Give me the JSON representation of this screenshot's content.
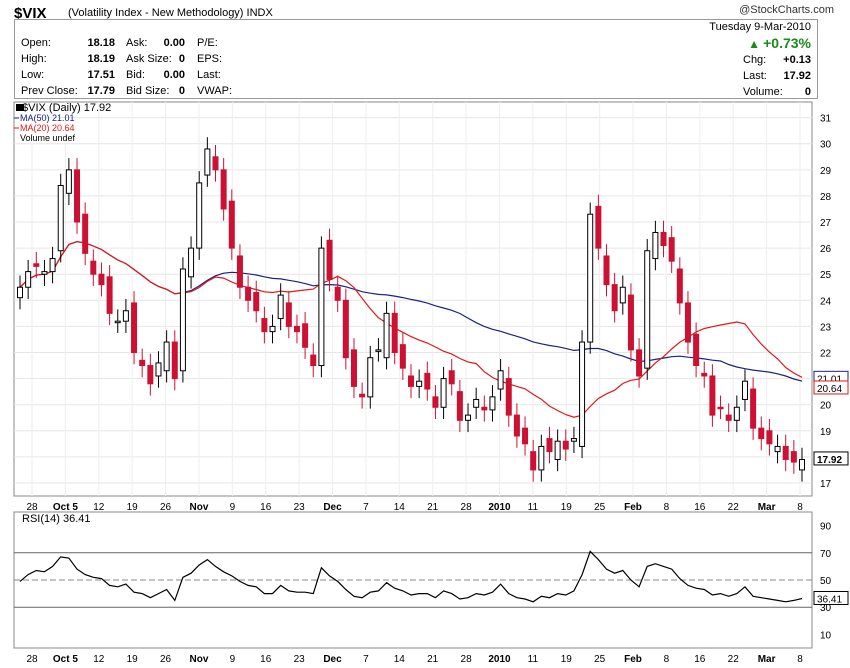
{
  "header": {
    "symbol": "$VIX",
    "name": "(Volatility Index - New Methodology)",
    "exchange": "INDX",
    "brand": "@StockCharts.com",
    "date": "Tuesday  9-Mar-2010",
    "change_pct": "+0.73%",
    "change_label": "Chg:",
    "change_value": "+0.13",
    "last_label": "Last:",
    "last_value": "17.92",
    "volume_label": "Volume:",
    "volume_value": "0",
    "fields": [
      {
        "label": "Open:",
        "value": "18.18"
      },
      {
        "label": "High:",
        "value": "18.19"
      },
      {
        "label": "Low:",
        "value": "17.51"
      },
      {
        "label": "Prev Close:",
        "value": "17.79"
      }
    ],
    "fields2": [
      {
        "label": "Ask:",
        "value": "0.00"
      },
      {
        "label": "Ask Size:",
        "value": "0"
      },
      {
        "label": "Bid:",
        "value": "0.00"
      },
      {
        "label": "Bid Size:",
        "value": "0"
      }
    ],
    "fields3": [
      "P/E:",
      "EPS:",
      "Last:",
      "VWAP:"
    ]
  },
  "colors": {
    "up": "#000000",
    "down": "#cc1133",
    "ma50": "#1a237e",
    "ma20": "#e01818",
    "rsi": "#000000"
  },
  "chart_data": [
    {
      "type": "candlestick",
      "title": "$VIX (Daily) 17.92",
      "legend": [
        "MA(50) 21.01",
        "MA(20) 20.64",
        "Volume undef"
      ],
      "ylim": [
        16.5,
        31.6
      ],
      "y_ticks": [
        17,
        18,
        19,
        20,
        21,
        22,
        23,
        24,
        25,
        26,
        27,
        28,
        29,
        30,
        31
      ],
      "x_ticks": [
        "28",
        "Oct 5",
        "12",
        "19",
        "26",
        "Nov",
        "9",
        "16",
        "23",
        "Dec",
        "7",
        "14",
        "21",
        "28",
        "2010",
        "11",
        "19",
        "25",
        "Feb",
        "8",
        "16",
        "22",
        "Mar",
        "8"
      ],
      "last_labels": {
        "ma50": "21.01",
        "ma20": "20.64",
        "close": "17.92"
      },
      "closes": [
        24.5,
        25.1,
        25.3,
        25.1,
        25.6,
        28.4,
        29.0,
        27.0,
        25.8,
        25.0,
        24.6,
        23.5,
        23.2,
        23.6,
        22.0,
        21.5,
        20.8,
        21.6,
        22.4,
        21.0,
        25.2,
        26.0,
        28.5,
        29.8,
        29.0,
        27.5,
        26.0,
        24.5,
        24.0,
        23.6,
        22.8,
        23.0,
        24.2,
        23.0,
        22.8,
        22.2,
        21.5,
        26.0,
        24.8,
        24.0,
        21.8,
        20.7,
        20.3,
        21.8,
        22.1,
        23.5,
        22.0,
        21.4,
        20.7,
        20.9,
        20.6,
        19.9,
        21.0,
        20.8,
        19.4,
        19.6,
        20.2,
        19.8,
        20.3,
        21.3,
        19.6,
        18.8,
        18.5,
        17.5,
        18.4,
        18.2,
        18.6,
        18.3,
        18.7,
        22.4,
        27.3,
        26.0,
        24.6,
        23.6,
        24.5,
        22.1,
        21.1,
        25.9,
        26.6,
        26.1,
        25.5,
        23.9,
        22.4,
        21.5,
        21.1,
        19.6,
        19.9,
        19.4,
        19.9,
        20.9,
        19.1,
        18.7,
        18.5,
        18.4,
        17.9,
        17.8,
        17.9
      ],
      "series": [
        {
          "name": "MA(50)",
          "last": 21.01
        },
        {
          "name": "MA(20)",
          "last": 20.64
        }
      ]
    },
    {
      "type": "line",
      "title": "RSI(14) 36.41",
      "ylim": [
        0,
        100
      ],
      "y_ticks": [
        10,
        30,
        50,
        70,
        90
      ],
      "reference_lines": [
        30,
        50,
        70
      ],
      "last_label": "36.41",
      "values": [
        49,
        54,
        57,
        56,
        60,
        67,
        66,
        58,
        54,
        52,
        51,
        46,
        45,
        47,
        41,
        40,
        37,
        40,
        43,
        35,
        52,
        55,
        61,
        65,
        60,
        56,
        53,
        49,
        46,
        45,
        40,
        40,
        46,
        42,
        41,
        41,
        40,
        59,
        53,
        49,
        43,
        38,
        37,
        41,
        42,
        48,
        44,
        42,
        39,
        40,
        40,
        37,
        42,
        40,
        36,
        37,
        40,
        39,
        41,
        47,
        40,
        37,
        36,
        34,
        38,
        37,
        40,
        39,
        42,
        54,
        71,
        65,
        58,
        55,
        57,
        50,
        45,
        60,
        62,
        60,
        58,
        51,
        46,
        44,
        43,
        39,
        40,
        38,
        40,
        45,
        38,
        37,
        36,
        35,
        34,
        35,
        36.41
      ]
    }
  ]
}
